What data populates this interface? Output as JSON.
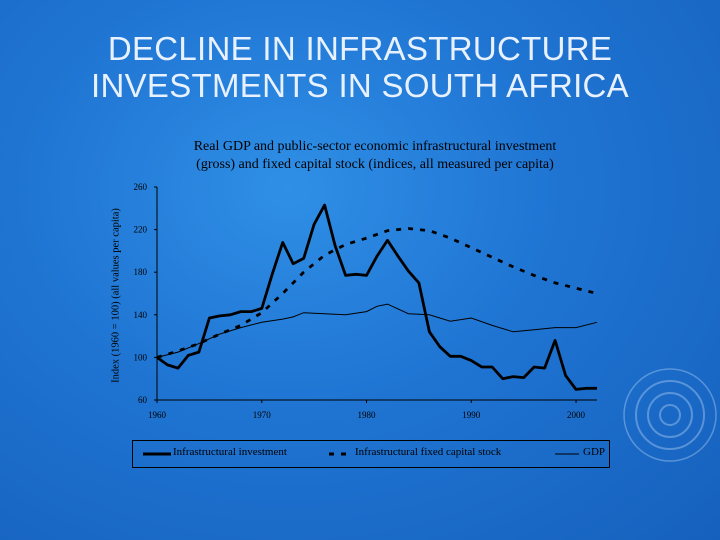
{
  "slide": {
    "title_line1": "DECLINE IN INFRASTRUCTURE",
    "title_line2": "INVESTMENTS IN SOUTH AFRICA"
  },
  "colors": {
    "background": "#1f74d2",
    "title": "#e8f1ff",
    "series": "#000000"
  },
  "chart_data": {
    "type": "line",
    "title_line1": "Real GDP and public-sector economic infrastructural investment",
    "title_line2": "(gross) and fixed capital stock (indices, all measured per capita)",
    "xlabel": "",
    "ylabel": "Index (1960 = 100) (all values per capita)",
    "xlim": [
      1960,
      2002
    ],
    "ylim": [
      60,
      260
    ],
    "x_ticks": [
      "1960",
      "1970",
      "1980",
      "1990",
      "2000"
    ],
    "y_ticks": [
      "60",
      "100",
      "140",
      "180",
      "220",
      "260"
    ],
    "grid": false,
    "legend_position": "bottom",
    "series": [
      {
        "name": "Infrastructural investment",
        "style": "solid-thick",
        "x": [
          1960,
          1961,
          1962,
          1963,
          1964,
          1965,
          1966,
          1967,
          1968,
          1969,
          1970,
          1971,
          1972,
          1973,
          1974,
          1975,
          1976,
          1977,
          1978,
          1979,
          1980,
          1981,
          1982,
          1983,
          1984,
          1985,
          1986,
          1987,
          1988,
          1989,
          1990,
          1991,
          1992,
          1993,
          1994,
          1995,
          1996,
          1997,
          1998,
          1999,
          2000,
          2001,
          2002
        ],
        "values": [
          100,
          93,
          90,
          102,
          105,
          137,
          139,
          140,
          143,
          143,
          146,
          178,
          208,
          188,
          193,
          225,
          243,
          205,
          177,
          178,
          177,
          195,
          210,
          195,
          181,
          170,
          124,
          110,
          101,
          101,
          97,
          91,
          91,
          80,
          82,
          81,
          91,
          90,
          116,
          83,
          70,
          71,
          71
        ]
      },
      {
        "name": "Infrastructural fixed capital stock",
        "style": "dashed",
        "x": [
          1960,
          1962,
          1964,
          1966,
          1968,
          1970,
          1972,
          1974,
          1976,
          1978,
          1980,
          1982,
          1984,
          1986,
          1988,
          1990,
          1992,
          1994,
          1996,
          1998,
          2000,
          2002
        ],
        "values": [
          100,
          106,
          113,
          122,
          130,
          142,
          160,
          180,
          196,
          206,
          212,
          219,
          221,
          219,
          212,
          203,
          194,
          185,
          177,
          170,
          165,
          160
        ]
      },
      {
        "name": "GDP",
        "style": "solid-thin",
        "x": [
          1960,
          1962,
          1964,
          1966,
          1968,
          1970,
          1972,
          1973,
          1974,
          1976,
          1978,
          1980,
          1981,
          1982,
          1984,
          1986,
          1988,
          1990,
          1992,
          1994,
          1996,
          1998,
          2000,
          2002
        ],
        "values": [
          100,
          105,
          113,
          122,
          128,
          133,
          136,
          138,
          142,
          141,
          140,
          143,
          148,
          150,
          141,
          140,
          134,
          137,
          130,
          124,
          126,
          128,
          128,
          133
        ]
      }
    ]
  }
}
